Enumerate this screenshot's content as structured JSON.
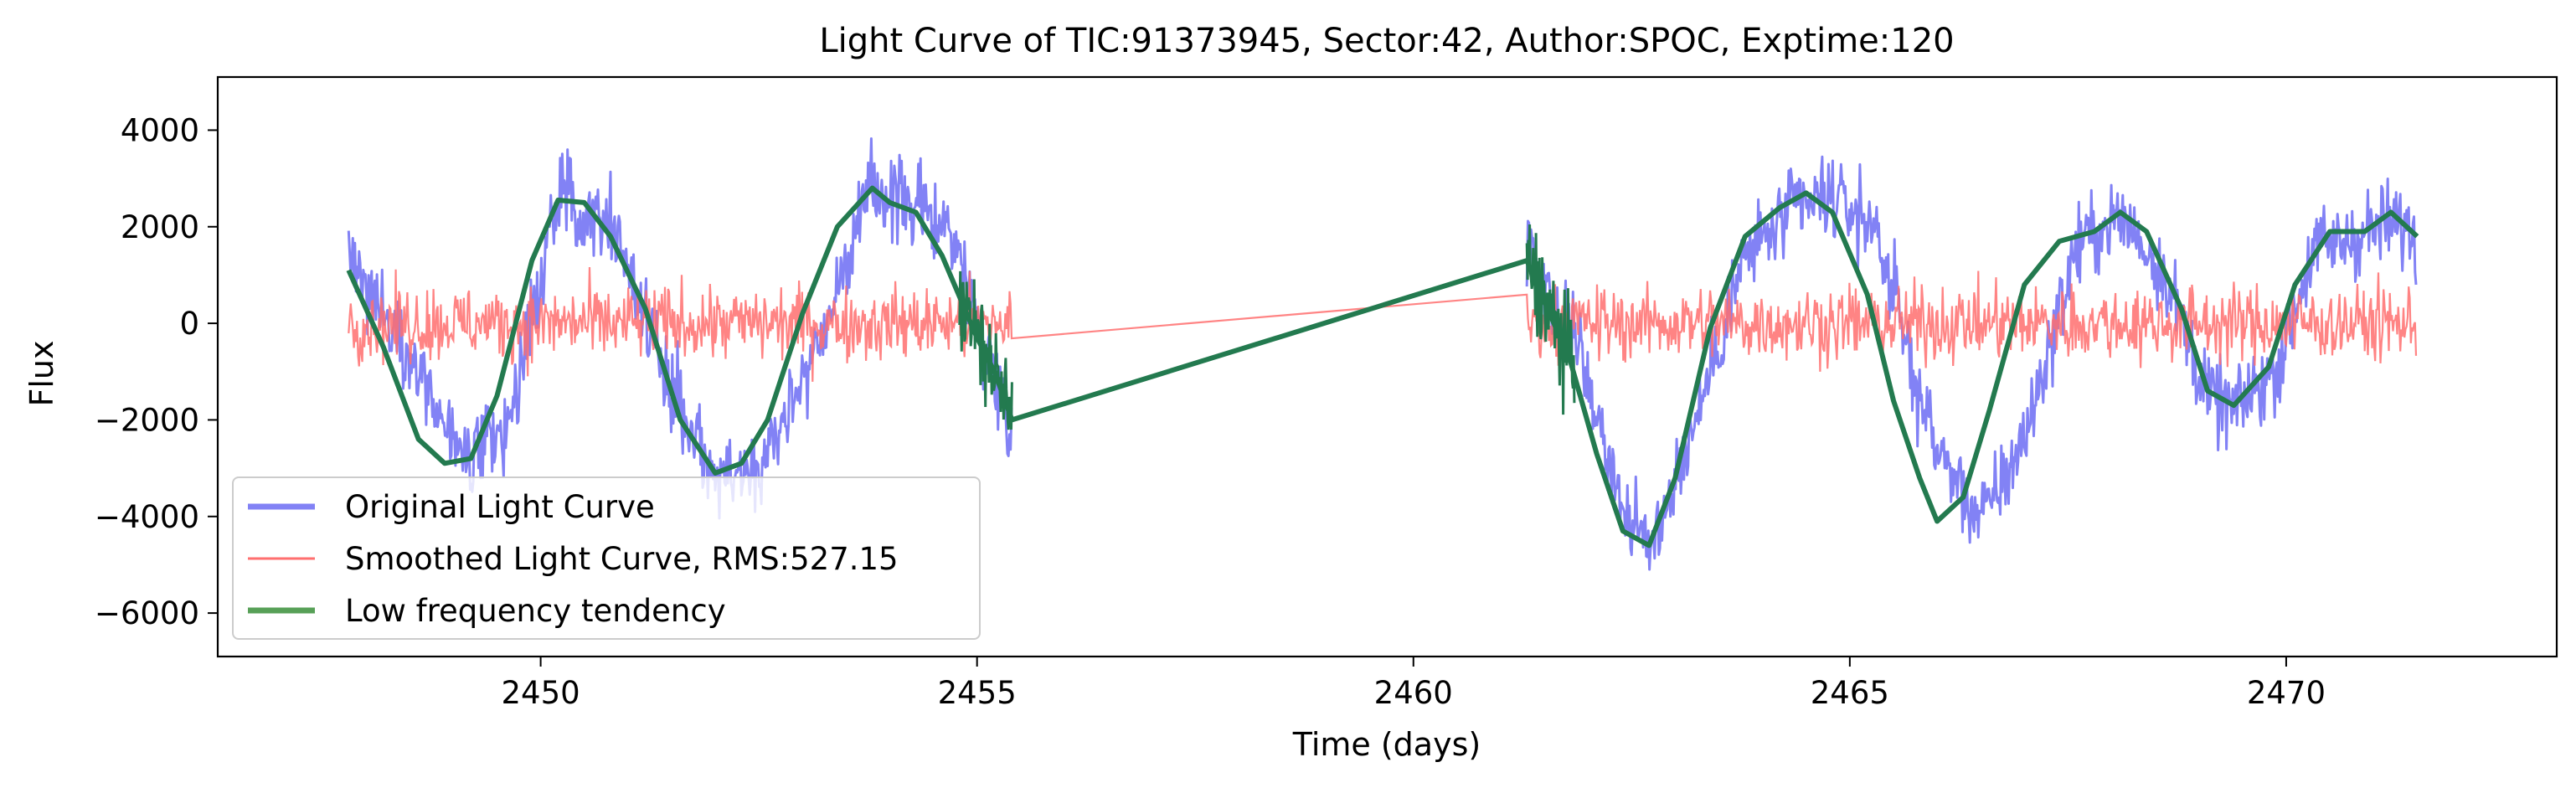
{
  "chart_data": {
    "type": "line",
    "title": "Light Curve of TIC:91373945, Sector:42, Author:SPOC, Exptime:120",
    "xlabel": "Time (days)",
    "ylabel": "Flux",
    "xlim": [
      2446.3,
      2473.1
    ],
    "ylim": [
      -6900,
      5100
    ],
    "xticks": [
      2450,
      2455,
      2460,
      2465,
      2470
    ],
    "yticks": [
      -6000,
      -4000,
      -2000,
      0,
      2000,
      4000
    ],
    "xtick_labels": [
      "2450",
      "2455",
      "2460",
      "2465",
      "2470"
    ],
    "ytick_labels": [
      "−6000",
      "−4000",
      "−2000",
      "0",
      "2000",
      "4000"
    ],
    "grid": false,
    "legend_position": "lower-left",
    "data_gap": [
      2455.4,
      2461.3
    ],
    "series": [
      {
        "name": "Original Light Curve",
        "color": "#7b7bf4",
        "noise_amplitude": 450,
        "x_range": [
          2447.8,
          2471.5
        ],
        "sample_x": [
          2447.8,
          2448.5,
          2449.1,
          2449.6,
          2450.2,
          2450.8,
          2451.4,
          2452.0,
          2452.5,
          2453.2,
          2453.8,
          2454.2,
          2454.7,
          2455.1,
          2455.4,
          2461.3,
          2461.9,
          2462.4,
          2462.7,
          2463.2,
          2463.8,
          2464.4,
          2464.8,
          2465.3,
          2465.8,
          2466.0,
          2466.5,
          2467.0,
          2467.6,
          2468.1,
          2468.6,
          2469.1,
          2469.4,
          2469.9,
          2470.3,
          2470.8,
          2471.2,
          2471.5
        ],
        "sample_y": [
          1400,
          -600,
          -2900,
          -2300,
          2600,
          2200,
          -900,
          -3200,
          -3000,
          -300,
          2800,
          2500,
          2000,
          -600,
          -2000,
          1600,
          -500,
          -3800,
          -4700,
          -2200,
          1400,
          2400,
          2600,
          2000,
          -1500,
          -2600,
          -4100,
          -2400,
          1600,
          2200,
          1100,
          -1500,
          -1800,
          -900,
          1500,
          1800,
          2100,
          1800
        ]
      },
      {
        "name": "Smoothed Light Curve, RMS:527.15",
        "color": "#ff6f6f",
        "rms": 527.15,
        "x_range": [
          2447.8,
          2471.5
        ],
        "gap_line": [
          [
            2455.4,
            -250
          ],
          [
            2461.3,
            250
          ]
        ]
      },
      {
        "name": "Low frequency tendency",
        "color": "#237a4f",
        "x": [
          2447.8,
          2448.2,
          2448.6,
          2448.9,
          2449.2,
          2449.5,
          2449.9,
          2450.2,
          2450.5,
          2450.8,
          2451.2,
          2451.6,
          2452.0,
          2452.3,
          2452.6,
          2453.0,
          2453.4,
          2453.8,
          2454.0,
          2454.3,
          2454.6,
          2455.0,
          2455.2,
          2455.4,
          2461.3,
          2461.8,
          2462.1,
          2462.4,
          2462.7,
          2463.0,
          2463.4,
          2463.8,
          2464.2,
          2464.5,
          2464.8,
          2465.2,
          2465.5,
          2465.8,
          2466.0,
          2466.3,
          2466.6,
          2467.0,
          2467.4,
          2467.8,
          2468.1,
          2468.4,
          2468.8,
          2469.1,
          2469.4,
          2469.8,
          2470.1,
          2470.5,
          2470.9,
          2471.2,
          2471.5
        ],
        "y": [
          1100,
          -500,
          -2400,
          -2900,
          -2800,
          -1500,
          1300,
          2550,
          2500,
          1800,
          300,
          -2000,
          -3100,
          -2900,
          -2000,
          200,
          2000,
          2800,
          2500,
          2300,
          1400,
          -300,
          -1000,
          -2000,
          1300,
          -800,
          -2700,
          -4300,
          -4600,
          -3200,
          -100,
          1800,
          2400,
          2700,
          2300,
          600,
          -1600,
          -3200,
          -4100,
          -3600,
          -1800,
          800,
          1700,
          1900,
          2300,
          1900,
          300,
          -1400,
          -1700,
          -900,
          800,
          1900,
          1900,
          2300,
          1800
        ]
      }
    ]
  }
}
